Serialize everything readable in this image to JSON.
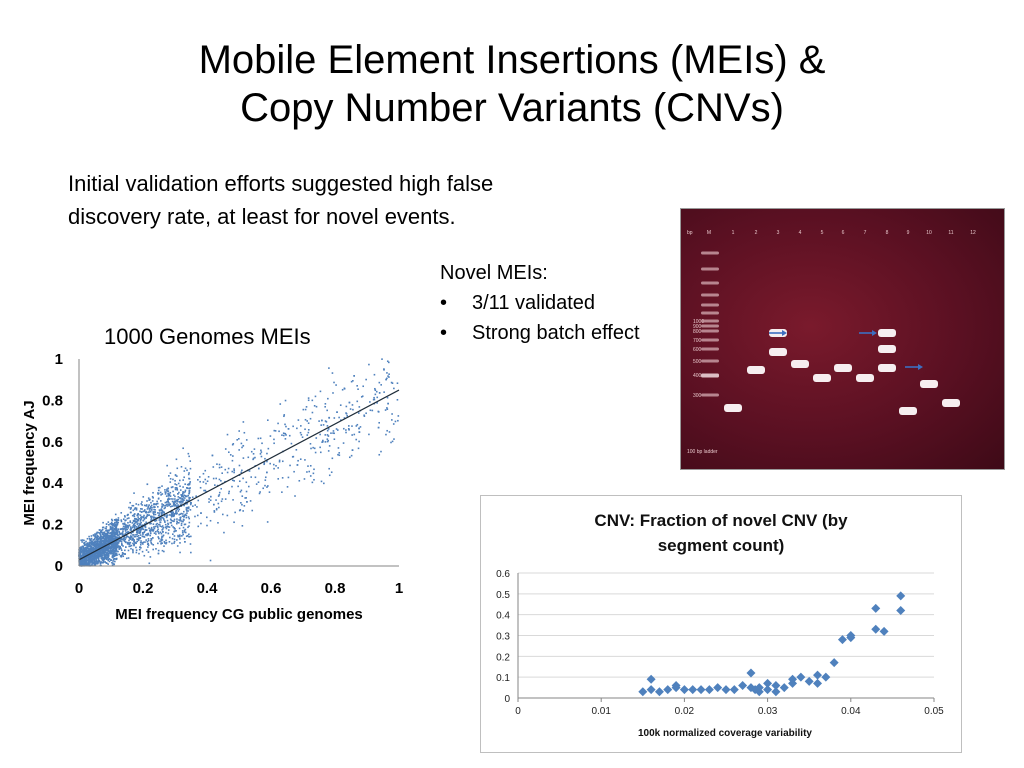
{
  "slide": {
    "title_line1": "Mobile Element Insertions (MEIs) &",
    "title_line2": "Copy Number Variants (CNVs)",
    "intro_line1": "Initial validation efforts suggested high false",
    "intro_line2": "discovery rate, at least for novel events.",
    "novel_heading": "Novel MEIs:",
    "novel_bullets": [
      "3/11 validated",
      "Strong batch effect"
    ]
  },
  "gel": {
    "top_label": "bp",
    "lane_labels": [
      "M",
      "1",
      "2",
      "3",
      "4",
      "5",
      "6",
      "7",
      "8",
      "9",
      "10",
      "11",
      "12"
    ],
    "size_labels": [
      "1000",
      "900",
      "800",
      "700",
      "600",
      "500",
      "400",
      "300"
    ],
    "footer": "100 bp ladder"
  },
  "chart_data": [
    {
      "type": "scatter",
      "title": "1000 Genomes MEIs",
      "xlabel": "MEI frequency CG public genomes",
      "ylabel": "MEI frequency AJ",
      "xlim": [
        0,
        1
      ],
      "ylim": [
        0,
        1
      ],
      "x_ticks": [
        "0",
        "0.2",
        "0.4",
        "0.6",
        "0.8",
        "1"
      ],
      "y_ticks": [
        "0",
        "0.2",
        "0.4",
        "0.6",
        "0.8",
        "1"
      ],
      "trendline": {
        "x": [
          0,
          1
        ],
        "y": [
          0.03,
          0.85
        ]
      },
      "point_color": "#4f81bd",
      "approx_points": 3000
    },
    {
      "type": "scatter",
      "title": "CNV: Fraction of novel CNV (by segment count)",
      "title_line1": "CNV: Fraction of novel CNV (by",
      "title_line2": "segment count)",
      "xlabel": "100k normalized coverage variability",
      "ylabel": "",
      "xlim": [
        0,
        0.05
      ],
      "ylim": [
        0,
        0.6
      ],
      "x_ticks": [
        "0",
        "0.01",
        "0.02",
        "0.03",
        "0.04",
        "0.05"
      ],
      "y_ticks": [
        "0",
        "0.1",
        "0.2",
        "0.3",
        "0.4",
        "0.5",
        "0.6"
      ],
      "marker": "diamond",
      "point_color": "#4f81bd",
      "x": [
        0.015,
        0.016,
        0.016,
        0.017,
        0.018,
        0.019,
        0.019,
        0.02,
        0.021,
        0.022,
        0.023,
        0.024,
        0.025,
        0.026,
        0.027,
        0.028,
        0.028,
        0.0285,
        0.029,
        0.029,
        0.03,
        0.03,
        0.031,
        0.031,
        0.032,
        0.033,
        0.033,
        0.034,
        0.035,
        0.036,
        0.036,
        0.037,
        0.038,
        0.039,
        0.04,
        0.04,
        0.043,
        0.043,
        0.044,
        0.046,
        0.046
      ],
      "y": [
        0.03,
        0.04,
        0.09,
        0.03,
        0.04,
        0.05,
        0.06,
        0.04,
        0.04,
        0.04,
        0.04,
        0.05,
        0.04,
        0.04,
        0.06,
        0.05,
        0.12,
        0.04,
        0.03,
        0.05,
        0.04,
        0.07,
        0.03,
        0.06,
        0.05,
        0.07,
        0.09,
        0.1,
        0.08,
        0.07,
        0.11,
        0.1,
        0.17,
        0.28,
        0.29,
        0.3,
        0.33,
        0.43,
        0.32,
        0.42,
        0.49
      ]
    }
  ]
}
